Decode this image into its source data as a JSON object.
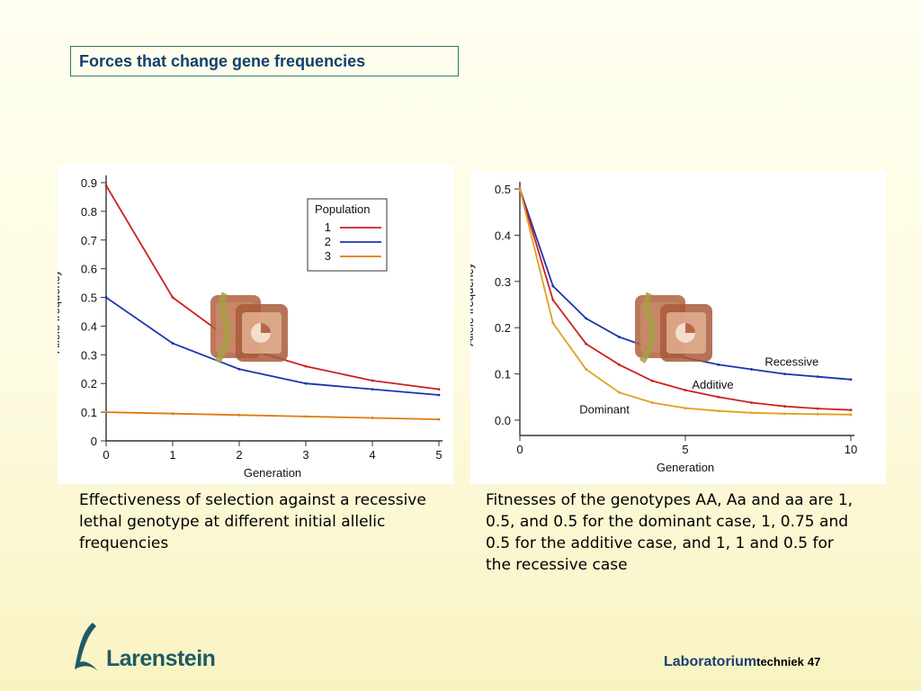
{
  "slide": {
    "title": "Forces that change gene frequencies",
    "caption_left": "Effectiveness of selection against a recessive lethal genotype at different initial allelic frequencies",
    "caption_right": "Fitnesses of the genotypes AA, Aa and aa are 1, 0.5, and 0.5 for the dominant case, 1, 0.75 and 0.5 for the additive case, and 1, 1 and 0.5 for the recessive case",
    "logo_text": "Larenstein",
    "footer": {
      "lab": "Laboratorium",
      "tech": "techniek",
      "page": "47"
    },
    "watermark_icon": "presentation-icon"
  },
  "chart_data": [
    {
      "type": "line",
      "xlabel": "Generation",
      "ylabel": "Allele frequency",
      "xlim": [
        0,
        5
      ],
      "ylim": [
        0,
        0.9
      ],
      "xticks": [
        "0",
        "1",
        "2",
        "3",
        "4",
        "5"
      ],
      "yticks": [
        "0",
        "0.1",
        "0.2",
        "0.3",
        "0.4",
        "0.5",
        "0.6",
        "0.7",
        "0.8",
        "0.9"
      ],
      "legend": {
        "title": "Population",
        "position": "top-right"
      },
      "series": [
        {
          "name": "1",
          "color": "#cc2020",
          "x": [
            0,
            1,
            2,
            3,
            4,
            5
          ],
          "y": [
            0.89,
            0.5,
            0.33,
            0.26,
            0.21,
            0.18
          ]
        },
        {
          "name": "2",
          "color": "#1a35b0",
          "x": [
            0,
            1,
            2,
            3,
            4,
            5
          ],
          "y": [
            0.5,
            0.34,
            0.25,
            0.2,
            0.18,
            0.16
          ]
        },
        {
          "name": "3",
          "color": "#e07a10",
          "x": [
            0,
            1,
            2,
            3,
            4,
            5
          ],
          "y": [
            0.1,
            0.095,
            0.09,
            0.085,
            0.08,
            0.075
          ]
        }
      ]
    },
    {
      "type": "line",
      "xlabel": "Generation",
      "ylabel": "Allele frequency",
      "xlim": [
        0,
        10
      ],
      "ylim": [
        0,
        0.5
      ],
      "xticks": [
        "0",
        "5",
        "10"
      ],
      "yticks": [
        "0.0",
        "0.1",
        "0.2",
        "0.3",
        "0.4",
        "0.5"
      ],
      "series": [
        {
          "name": "Recessive",
          "color": "#1a35b0",
          "x": [
            0,
            1,
            2,
            3,
            4,
            5,
            6,
            7,
            8,
            9,
            10
          ],
          "y": [
            0.5,
            0.29,
            0.22,
            0.18,
            0.155,
            0.135,
            0.12,
            0.11,
            0.1,
            0.094,
            0.088
          ]
        },
        {
          "name": "Additive",
          "color": "#cc2020",
          "x": [
            0,
            1,
            2,
            3,
            4,
            5,
            6,
            7,
            8,
            9,
            10
          ],
          "y": [
            0.5,
            0.26,
            0.165,
            0.12,
            0.085,
            0.065,
            0.05,
            0.038,
            0.03,
            0.025,
            0.022
          ]
        },
        {
          "name": "Dominant",
          "color": "#e0a020",
          "x": [
            0,
            1,
            2,
            3,
            4,
            5,
            6,
            7,
            8,
            9,
            10
          ],
          "y": [
            0.5,
            0.21,
            0.11,
            0.06,
            0.038,
            0.026,
            0.02,
            0.016,
            0.014,
            0.013,
            0.012
          ]
        }
      ]
    }
  ]
}
